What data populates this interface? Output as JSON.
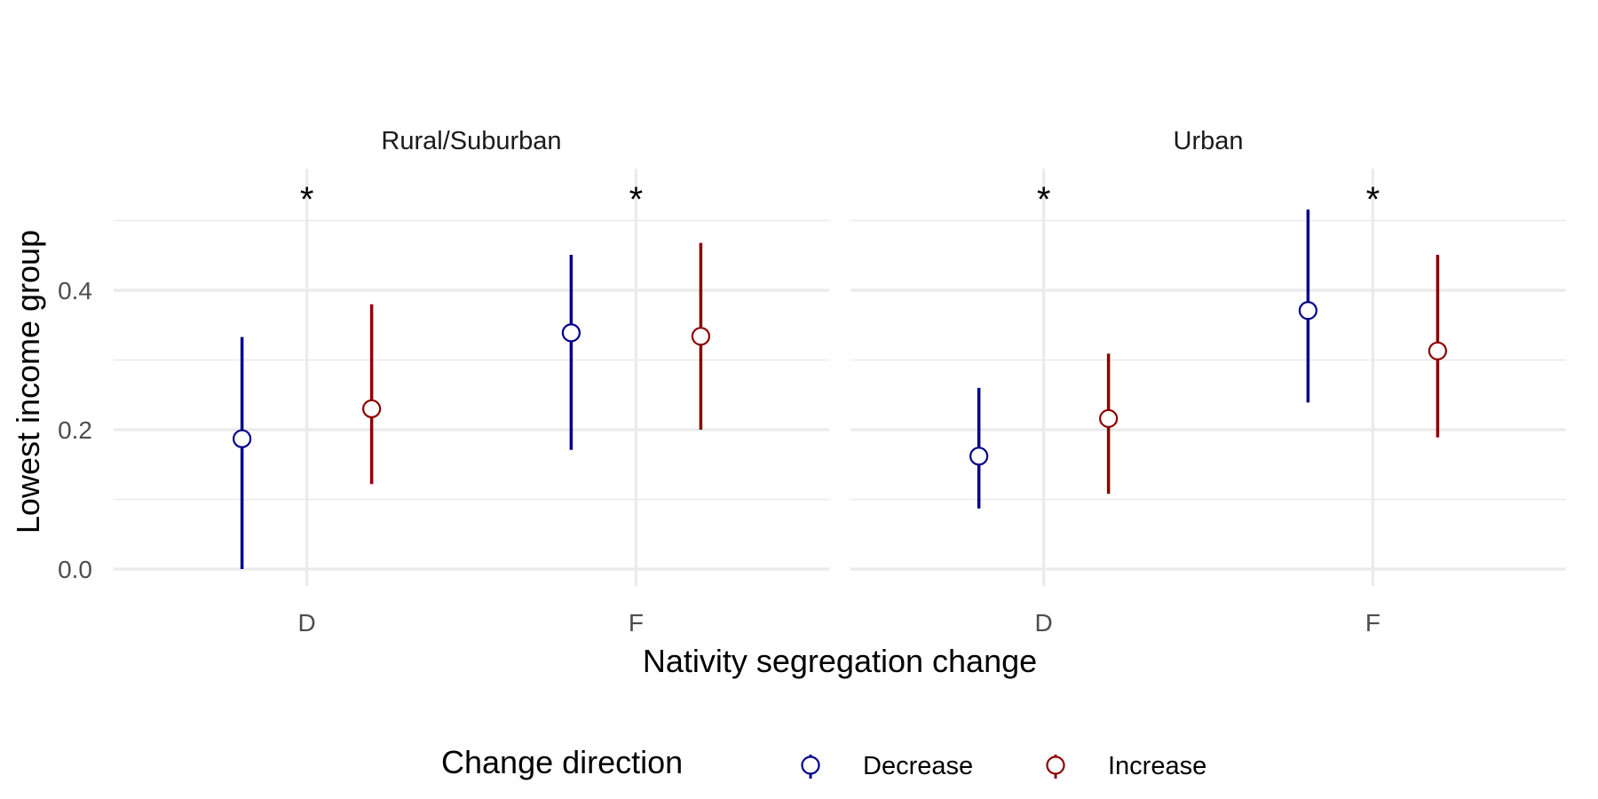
{
  "chart_data": {
    "type": "scatter",
    "subtype": "point-range (faceted)",
    "ylabel": "Lowest income group",
    "xlabel": "Nativity segregation change",
    "categories": [
      "D",
      "F"
    ],
    "ylim": [
      0,
      0.57
    ],
    "y_ticks": [
      0.0,
      0.2,
      0.4
    ],
    "y_tick_labels": [
      "0.0",
      "0.2",
      "0.4"
    ],
    "grid": "on",
    "colors": {
      "Decrease": "#00008B",
      "Increase": "#8B0000",
      "grid": "#ebebeb"
    },
    "legend": {
      "title": "Change direction",
      "placement": "bottom",
      "entries": [
        "Decrease",
        "Increase"
      ]
    },
    "facets": [
      {
        "label": "Rural/Suburban",
        "significance": [
          {
            "category": "D",
            "text": "*"
          },
          {
            "category": "F",
            "text": "*"
          }
        ],
        "series": [
          {
            "name": "Decrease",
            "points": [
              {
                "x": "D",
                "y": 0.187,
                "ymin": 0.0,
                "ymax": 0.333
              },
              {
                "x": "F",
                "y": 0.339,
                "ymin": 0.171,
                "ymax": 0.451
              }
            ]
          },
          {
            "name": "Increase",
            "points": [
              {
                "x": "D",
                "y": 0.23,
                "ymin": 0.122,
                "ymax": 0.38
              },
              {
                "x": "F",
                "y": 0.334,
                "ymin": 0.2,
                "ymax": 0.468
              }
            ]
          }
        ]
      },
      {
        "label": "Urban",
        "significance": [
          {
            "category": "D",
            "text": "*"
          },
          {
            "category": "F",
            "text": "*"
          }
        ],
        "series": [
          {
            "name": "Decrease",
            "points": [
              {
                "x": "D",
                "y": 0.162,
                "ymin": 0.087,
                "ymax": 0.26
              },
              {
                "x": "F",
                "y": 0.371,
                "ymin": 0.239,
                "ymax": 0.516
              }
            ]
          },
          {
            "name": "Increase",
            "points": [
              {
                "x": "D",
                "y": 0.216,
                "ymin": 0.108,
                "ymax": 0.309
              },
              {
                "x": "F",
                "y": 0.313,
                "ymin": 0.189,
                "ymax": 0.451
              }
            ]
          }
        ]
      }
    ]
  }
}
